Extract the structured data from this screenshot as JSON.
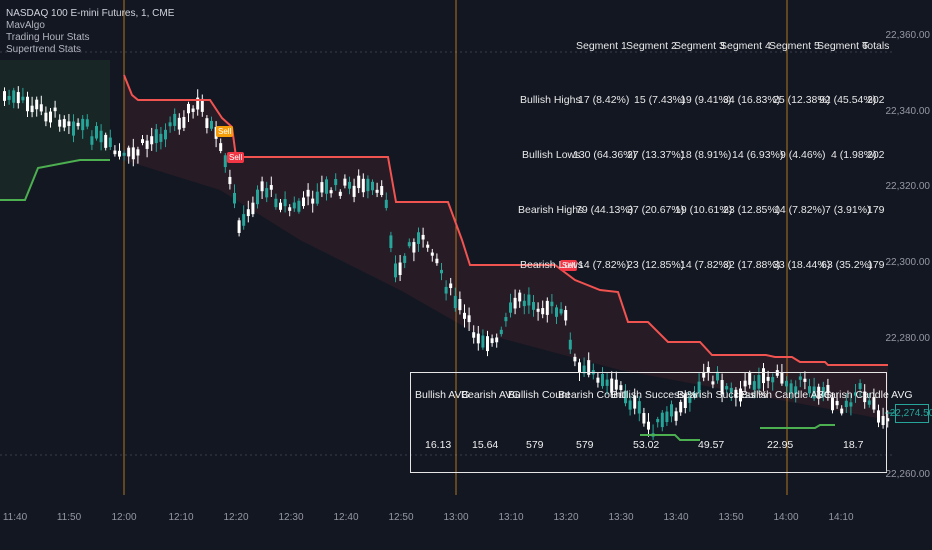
{
  "header": {
    "symbol": "NASDAQ 100 E-mini Futures, 1, CME",
    "indicators": [
      "MavAlgo",
      "Trading Hour Stats",
      "Supertrend Stats"
    ]
  },
  "price_axis": {
    "labels": [
      "22,360.00",
      "22,340.00",
      "22,320.00",
      "22,300.00",
      "22,280.00",
      "22,260.00"
    ],
    "current_price": "22,274.50"
  },
  "time_axis": {
    "labels": [
      "11:40",
      "11:50",
      "12:00",
      "12:10",
      "12:20",
      "12:30",
      "12:40",
      "12:50",
      "13:00",
      "13:10",
      "13:20",
      "13:30",
      "13:40",
      "13:50",
      "14:00",
      "14:10"
    ]
  },
  "signals": {
    "sell_labels": [
      "Sell",
      "Sell",
      "Sell"
    ]
  },
  "stats_table": {
    "headers": [
      "Segment 1",
      "Segment 2",
      "Segment 3",
      "Segment 4",
      "Segment 5",
      "Segment 6",
      "Totals"
    ],
    "rows": [
      {
        "label": "Bullish Highs",
        "cells": [
          "17 (8.42%)",
          "15 (7.43%)",
          "19 (9.41%)",
          "34 (16.83%)",
          "25 (12.38%)",
          "92 (45.54%)",
          "202"
        ]
      },
      {
        "label": "Bullish Lows",
        "cells": [
          "130 (64.36%)",
          "27 (13.37%)",
          "18 (8.91%)",
          "14 (6.93%)",
          "9 (4.46%)",
          "4 (1.98%)",
          "202"
        ]
      },
      {
        "label": "Bearish Highs",
        "cells": [
          "79 (44.13%)",
          "37 (20.67%)",
          "19 (10.61%)",
          "23 (12.85%)",
          "14 (7.82%)",
          "7 (3.91%)",
          "179"
        ]
      },
      {
        "label": "Bearish Lows",
        "cells": [
          "14 (7.82%)",
          "23 (12.85%)",
          "14 (7.82%)",
          "32 (17.88%)",
          "33 (18.44%)",
          "63 (35.2%)",
          "179"
        ]
      }
    ]
  },
  "summary_table": {
    "headers": [
      "Bullish AVG",
      "Bearish AVG",
      "Bullish Count",
      "Bearish Count",
      "Bullish Success %",
      "Bearish Success %",
      "Bullish Candle AVG",
      "Bearish Candle AVG"
    ],
    "values": [
      "16.13",
      "15.64",
      "579",
      "579",
      "53.02",
      "49.57",
      "22.95",
      "18.7"
    ]
  },
  "colors": {
    "background": "#131722",
    "bullish_candle": "#26a69a",
    "bearish_candle": "#ffffff",
    "supertrend_bear": "#f05350",
    "supertrend_bull": "#4caf50",
    "session_line": "#f0a020",
    "sell_label": "#f23645",
    "sell_label_orange": "#f59e0b"
  }
}
